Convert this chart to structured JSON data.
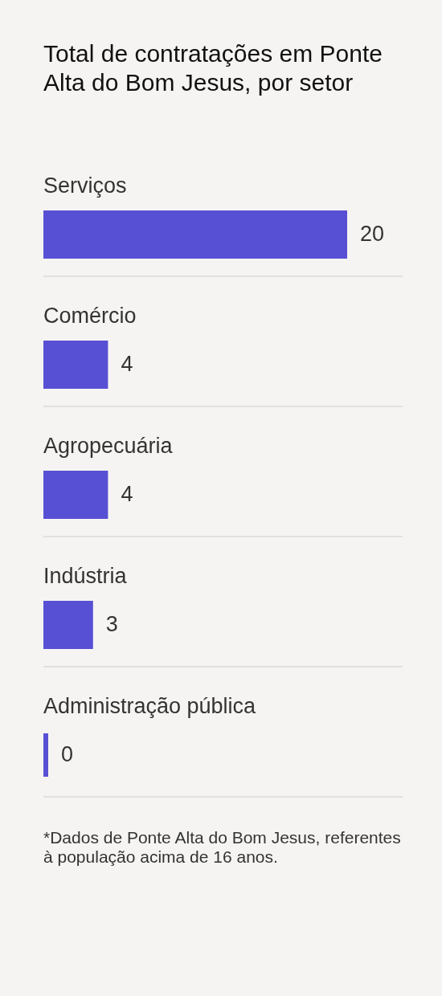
{
  "chart_data": {
    "type": "bar",
    "orientation": "horizontal",
    "title": "Total de contratações em Ponte Alta do Bom Jesus, por setor",
    "categories": [
      "Serviços",
      "Comércio",
      "Agropecuária",
      "Indústria",
      "Administração pública"
    ],
    "values": [
      20,
      4,
      4,
      3,
      0
    ],
    "color": "#5850d4",
    "data_labels": true,
    "grid": "y",
    "annotations": [
      "*Dados de Ponte Alta do Bom Jesus, referentes à população acima de 16 anos."
    ]
  }
}
